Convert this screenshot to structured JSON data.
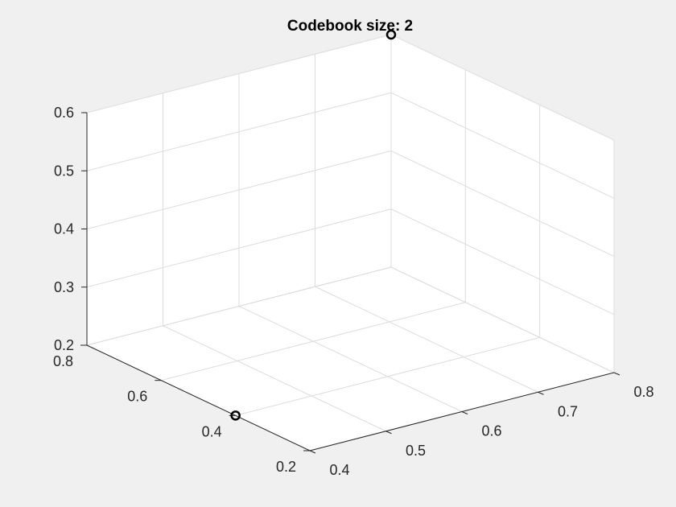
{
  "figure": {
    "background": "#f0f0f0",
    "axes_background": "#ffffff",
    "grid_color": "#dcdcdc",
    "axis_color": "#262626",
    "marker_color": "#000000"
  },
  "chart_data": {
    "type": "scatter",
    "title": "Codebook size: 2",
    "projection": "3d",
    "grid": true,
    "xlim": [
      0.4,
      0.8
    ],
    "ylim": [
      0.2,
      0.8
    ],
    "zlim": [
      0.2,
      0.6
    ],
    "x_ticks": [
      "0.4",
      "0.5",
      "0.6",
      "0.7",
      "0.8"
    ],
    "y_ticks": [
      "0.2",
      "0.4",
      "0.6",
      "0.8"
    ],
    "z_ticks": [
      "0.2",
      "0.3",
      "0.4",
      "0.5",
      "0.6"
    ],
    "marker": "circle",
    "points": [
      {
        "x": 0.4,
        "y": 0.4,
        "z": 0.2
      },
      {
        "x": 0.8,
        "y": 0.8,
        "z": 0.6
      }
    ]
  }
}
